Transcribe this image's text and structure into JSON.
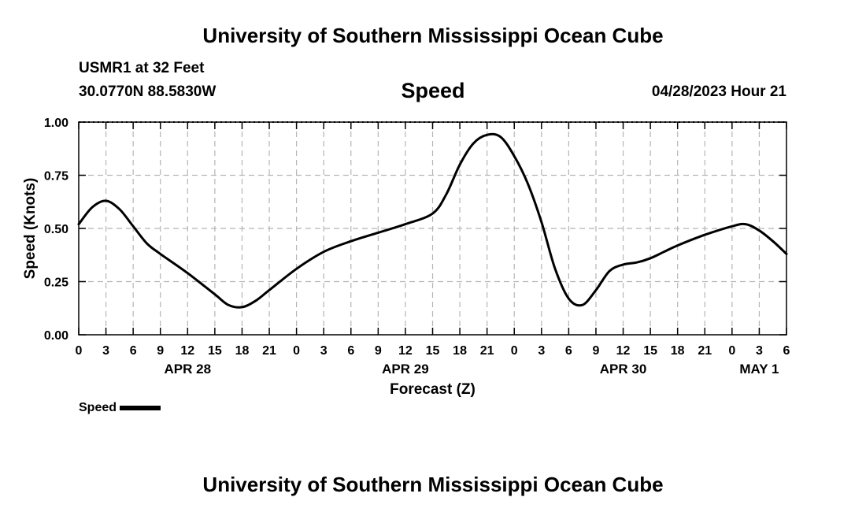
{
  "header": {
    "title": "University of Southern Mississippi Ocean Cube",
    "station": "USMR1 at 32 Feet",
    "coords": "30.0770N  88.5830W",
    "chart_title": "Speed",
    "datestamp": "04/28/2023 Hour 21"
  },
  "footer": {
    "title": "University of Southern Mississippi Ocean Cube"
  },
  "legend": {
    "label": "Speed"
  },
  "chart_data": {
    "type": "line",
    "title": "Speed",
    "xlabel": "Forecast (Z)",
    "ylabel": "Speed (Knots)",
    "xlim": [
      0,
      78
    ],
    "ylim": [
      0,
      1
    ],
    "grid": true,
    "legend_position": "bottom-left",
    "x_ticks": [
      0,
      3,
      6,
      9,
      12,
      15,
      18,
      21,
      24,
      27,
      30,
      33,
      36,
      39,
      42,
      45,
      48,
      51,
      54,
      57,
      60,
      63,
      66,
      69,
      72,
      75,
      78
    ],
    "x_tick_labels": [
      "0",
      "3",
      "6",
      "9",
      "12",
      "15",
      "18",
      "21",
      "0",
      "3",
      "6",
      "9",
      "12",
      "15",
      "18",
      "21",
      "0",
      "3",
      "6",
      "9",
      "12",
      "15",
      "18",
      "21",
      "0",
      "3",
      "6"
    ],
    "date_labels": [
      {
        "x": 12,
        "label": "APR 28"
      },
      {
        "x": 36,
        "label": "APR 29"
      },
      {
        "x": 60,
        "label": "APR 30"
      },
      {
        "x": 75,
        "label": "MAY 1"
      }
    ],
    "y_ticks": [
      0,
      0.25,
      0.5,
      0.75,
      1.0
    ],
    "y_tick_labels": [
      "0.00",
      "0.25",
      "0.50",
      "0.75",
      "1.00"
    ],
    "series": [
      {
        "name": "Speed",
        "color": "#000000",
        "x": [
          0,
          1.5,
          3,
          4.5,
          6,
          7.5,
          9,
          12,
          15,
          16.5,
          18,
          19.5,
          21,
          24,
          27,
          30,
          33,
          36,
          39,
          40.5,
          42,
          43.5,
          45,
          46.5,
          48,
          49.5,
          51,
          52.5,
          54,
          55.5,
          57,
          58.5,
          60,
          61.5,
          63,
          64.5,
          66,
          69,
          72,
          73.5,
          75,
          76.5,
          78
        ],
        "values": [
          0.52,
          0.6,
          0.63,
          0.59,
          0.51,
          0.43,
          0.38,
          0.29,
          0.19,
          0.14,
          0.13,
          0.16,
          0.21,
          0.31,
          0.39,
          0.44,
          0.48,
          0.52,
          0.57,
          0.66,
          0.8,
          0.9,
          0.94,
          0.93,
          0.84,
          0.71,
          0.53,
          0.31,
          0.17,
          0.14,
          0.21,
          0.3,
          0.33,
          0.34,
          0.36,
          0.39,
          0.42,
          0.47,
          0.51,
          0.52,
          0.49,
          0.44,
          0.38
        ]
      }
    ]
  }
}
